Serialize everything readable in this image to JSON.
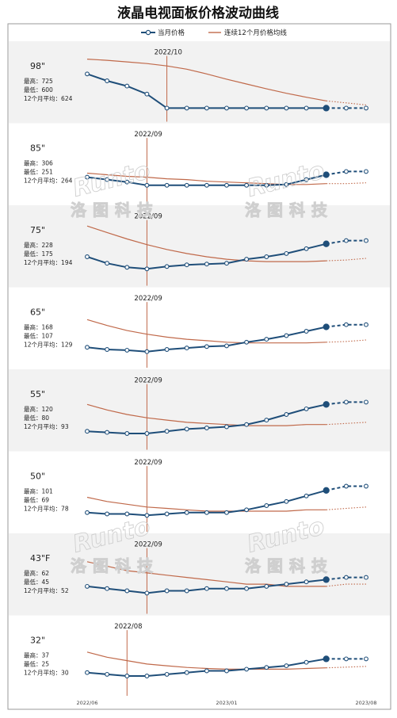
{
  "chart_data": {
    "type": "line",
    "title": "液晶电视面板价格波动曲线",
    "legend": {
      "position": "top-center",
      "items": [
        {
          "name": "当月价格",
          "color": "#1f4e79"
        },
        {
          "name": "连续12个月价格均线",
          "color": "#c0694a"
        }
      ]
    },
    "x_axis_labels": [
      "2022/06",
      "2023/01",
      "2023/08"
    ],
    "months": 15,
    "watermark": {
      "latin": "Runto",
      "chinese": "洛图科技"
    },
    "panels": [
      {
        "size": "98\"",
        "stats": {
          "high": "最高：725",
          "low": "最低：600",
          "avg": "12个月平均：624"
        },
        "y_range": [
          590,
          735
        ],
        "event": {
          "label": "2022/10",
          "index": 4
        },
        "price": [
          685,
          668,
          655,
          635,
          600,
          600,
          600,
          600,
          600,
          600,
          600,
          600,
          600,
          600,
          600
        ],
        "avg": [
          722,
          719,
          715,
          711,
          705,
          697,
          685,
          672,
          660,
          648,
          637,
          627,
          618,
          613,
          608
        ]
      },
      {
        "size": "85\"",
        "stats": {
          "high": "最高：306",
          "low": "最低：251",
          "avg": "12个月平均：264"
        },
        "y_range": [
          240,
          312
        ],
        "event": {
          "label": "2022/09",
          "index": 3
        },
        "price": [
          261,
          258,
          255,
          251,
          251,
          251,
          251,
          251,
          251,
          251,
          252,
          258,
          264,
          268,
          268
        ],
        "avg": [
          266,
          264,
          262,
          261,
          259,
          258,
          256,
          255,
          254,
          253,
          252,
          252,
          253,
          253,
          254
        ]
      },
      {
        "size": "75\"",
        "stats": {
          "high": "最高：228",
          "low": "最低：175",
          "avg": "12个月平均：194"
        },
        "y_range": [
          166,
          238
        ],
        "event": {
          "label": "2022/09",
          "index": 3
        },
        "price": [
          190,
          182,
          177,
          175,
          178,
          180,
          181,
          182,
          187,
          190,
          194,
          200,
          206,
          210,
          210
        ],
        "avg": [
          228,
          220,
          212,
          205,
          199,
          194,
          190,
          187,
          185,
          184,
          184,
          184,
          185,
          186,
          188
        ]
      },
      {
        "size": "65\"",
        "stats": {
          "high": "最高：168",
          "low": "最低：107",
          "avg": "12个月平均：129"
        },
        "y_range": [
          98,
          178
        ],
        "event": {
          "label": "2022/09",
          "index": 3
        },
        "price": [
          113,
          110,
          109,
          107,
          110,
          112,
          114,
          115,
          120,
          124,
          129,
          135,
          141,
          144,
          144
        ],
        "avg": [
          151,
          143,
          136,
          131,
          127,
          124,
          122,
          120,
          119,
          119,
          119,
          119,
          120,
          121,
          123
        ]
      },
      {
        "size": "55\"",
        "stats": {
          "high": "最高：120",
          "low": "最低：80",
          "avg": "12个月平均：93"
        },
        "y_range": [
          74,
          126
        ],
        "event": {
          "label": "2022/09",
          "index": 3
        },
        "price": [
          82,
          81,
          80,
          80,
          82,
          84,
          85,
          86,
          88,
          92,
          97,
          102,
          106,
          108,
          108
        ],
        "avg": [
          106,
          101,
          97,
          94,
          92,
          90,
          89,
          88,
          87,
          87,
          87,
          88,
          88,
          89,
          90
        ]
      },
      {
        "size": "50\"",
        "stats": {
          "high": "最高：101",
          "low": "最低：69",
          "avg": "12个月平均：78"
        },
        "y_range": [
          64,
          106
        ],
        "event": {
          "label": "2022/09",
          "index": 3
        },
        "price": [
          71,
          70,
          70,
          69,
          70,
          71,
          71,
          71,
          73,
          76,
          79,
          83,
          87,
          90,
          90
        ],
        "avg": [
          82,
          79,
          77,
          75,
          74,
          73,
          72,
          72,
          72,
          72,
          72,
          73,
          73,
          74,
          75
        ]
      },
      {
        "size": "43\"F",
        "stats": {
          "high": "最高：62",
          "low": "最低：45",
          "avg": "12个月平均：52"
        },
        "y_range": [
          40,
          66
        ],
        "event": {
          "label": "2022/09",
          "index": 3
        },
        "price": [
          48,
          47,
          46,
          45,
          46,
          46,
          47,
          47,
          47,
          48,
          49,
          50,
          51,
          52,
          52
        ],
        "avg": [
          59,
          57,
          55,
          54,
          53,
          52,
          51,
          50,
          49,
          49,
          48,
          48,
          48,
          49,
          49
        ]
      },
      {
        "size": "32\"",
        "stats": {
          "high": "最高：37",
          "low": "最低：25",
          "avg": "12个月平均：30"
        },
        "y_range": [
          23,
          40
        ],
        "event": {
          "label": "2022/08",
          "index": 2
        },
        "price": [
          27,
          26.5,
          26,
          26,
          26.5,
          27,
          27.5,
          27.5,
          28,
          28.5,
          29,
          30,
          31,
          31,
          31
        ],
        "avg": [
          33,
          31.5,
          30.5,
          29.5,
          29,
          28.5,
          28.2,
          28,
          28,
          28,
          28,
          28.2,
          28.4,
          28.6,
          28.8
        ]
      }
    ]
  }
}
